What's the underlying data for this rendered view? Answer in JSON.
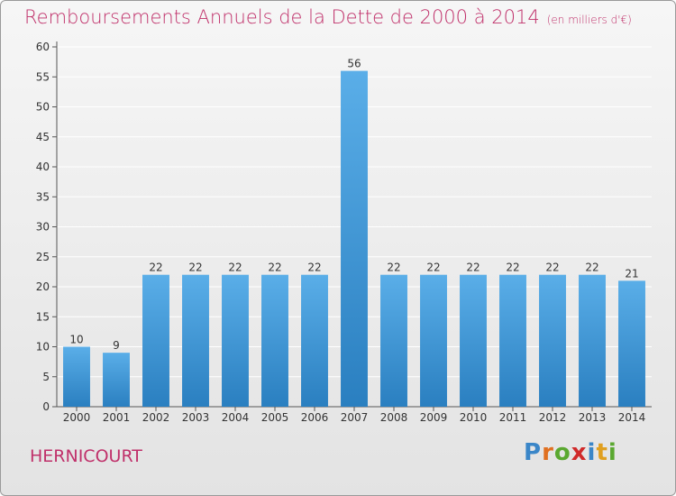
{
  "header": {
    "title": "Remboursements Annuels de la Dette de 2000 à 2014",
    "unit": "(en milliers d'€)"
  },
  "footer": {
    "commune": "HERNICOURT",
    "brand": "Proxiti"
  },
  "colors": {
    "title": "#c0306a",
    "bar_top": "#5aaee8",
    "bar_bottom": "#2a7fc0",
    "grid": "#ffffff"
  },
  "chart_data": {
    "type": "bar",
    "title": "Remboursements Annuels de la Dette de 2000 à 2014",
    "subtitle": "(en milliers d'€)",
    "categories": [
      "2000",
      "2001",
      "2002",
      "2003",
      "2004",
      "2005",
      "2006",
      "2007",
      "2008",
      "2009",
      "2010",
      "2011",
      "2012",
      "2013",
      "2014"
    ],
    "values": [
      10,
      9,
      22,
      22,
      22,
      22,
      22,
      56,
      22,
      22,
      22,
      22,
      22,
      22,
      21
    ],
    "ylim": [
      0,
      60
    ],
    "yticks": [
      0,
      5,
      10,
      15,
      20,
      25,
      30,
      35,
      40,
      45,
      50,
      55,
      60
    ],
    "grid": true,
    "legend": "none"
  }
}
